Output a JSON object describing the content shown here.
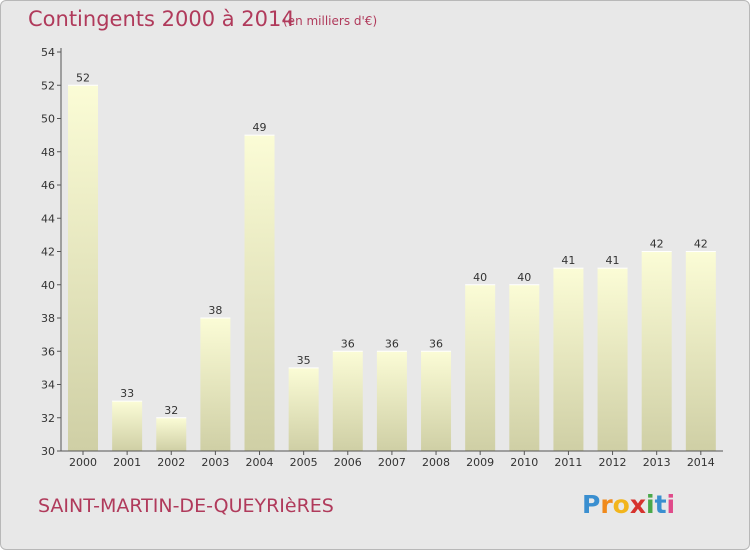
{
  "header": {
    "title": "Contingents 2000 à 2014",
    "unit": "(en milliers d'€)"
  },
  "footer": {
    "commune": "SAINT-MARTIN-DE-QUEYRIèRES",
    "brand": [
      "P",
      "r",
      "o",
      "x",
      "i",
      "t",
      "i"
    ]
  },
  "colors": {
    "title": "#b03a5b",
    "bar_top": "#fbfcd6",
    "bar_bottom": "#cfcfa5",
    "background": "#e8e8e8"
  },
  "chart_data": {
    "type": "bar",
    "categories": [
      "2000",
      "2001",
      "2002",
      "2003",
      "2004",
      "2005",
      "2006",
      "2007",
      "2008",
      "2009",
      "2010",
      "2011",
      "2012",
      "2013",
      "2014"
    ],
    "values": [
      52,
      33,
      32,
      38,
      49,
      35,
      36,
      36,
      36,
      40,
      40,
      41,
      41,
      42,
      42
    ],
    "ylim": [
      30,
      54
    ],
    "yticks": [
      30,
      32,
      34,
      36,
      38,
      40,
      42,
      44,
      46,
      48,
      50,
      52,
      54
    ],
    "grid": false,
    "legend": "none"
  }
}
